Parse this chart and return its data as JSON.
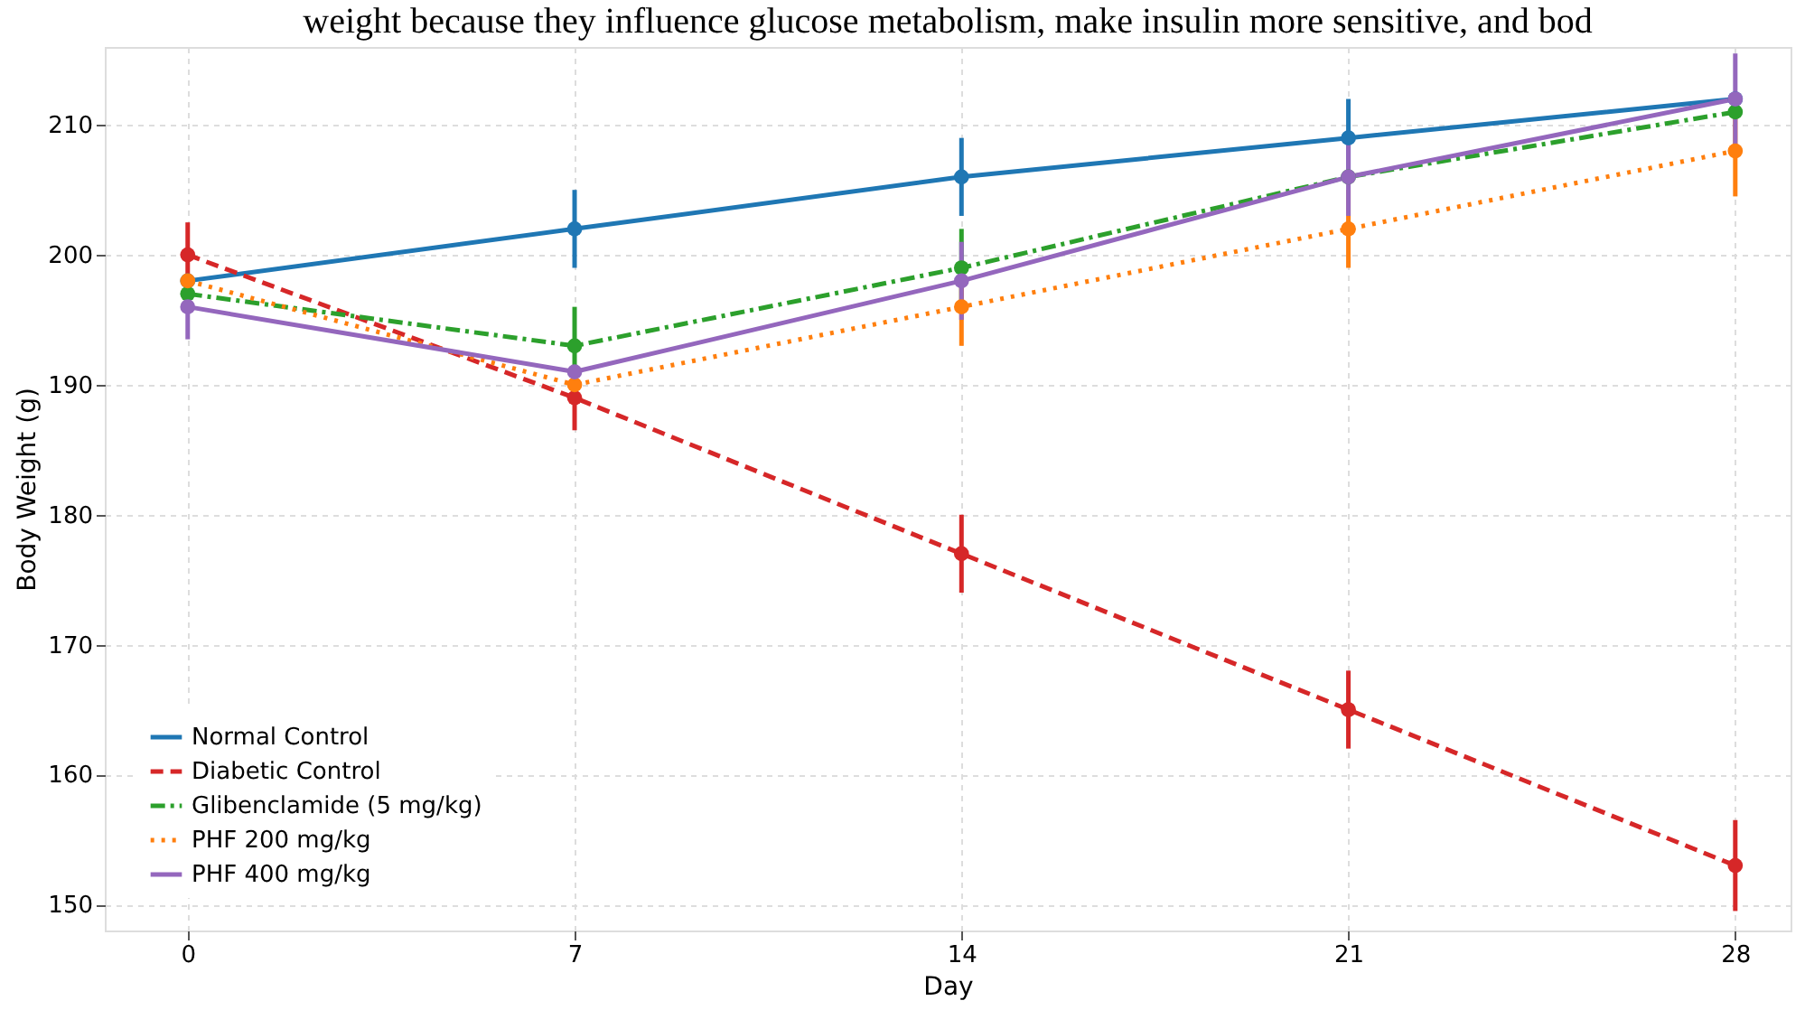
{
  "chart_data": {
    "type": "line",
    "xlabel": "Day",
    "ylabel": "Body Weight (g)",
    "annotations": [
      "weight because they influence glucose metabolism, make insulin more sensitive, and bod"
    ],
    "x": [
      0,
      7,
      14,
      21,
      28
    ],
    "xlim": [
      -1.5,
      29
    ],
    "xticks": [
      0,
      7,
      14,
      21,
      28
    ],
    "ylim": [
      148,
      216
    ],
    "yticks": [
      150,
      160,
      170,
      180,
      190,
      200,
      210
    ],
    "grid": true,
    "legend": "bottom left",
    "marker": "circle",
    "series": [
      {
        "name": "Normal Control",
        "color": "#1f77b4",
        "line_style": "solid",
        "values": [
          198,
          202,
          206,
          209,
          212
        ],
        "errors": [
          null,
          3,
          3,
          3,
          null
        ]
      },
      {
        "name": "Diabetic Control",
        "color": "#d62728",
        "line_style": "dashed",
        "values": [
          200,
          189,
          177,
          165,
          153
        ],
        "errors": [
          2.5,
          2.5,
          3,
          3,
          3.5
        ]
      },
      {
        "name": "Glibenclamide (5 mg/kg)",
        "color": "#2ca02c",
        "line_style": "dashdot",
        "values": [
          197,
          193,
          199,
          206,
          211
        ],
        "errors": [
          null,
          3,
          3,
          null,
          null
        ]
      },
      {
        "name": "PHF 200 mg/kg",
        "color": "#ff7f0e",
        "line_style": "dotted",
        "values": [
          198,
          190,
          196,
          202,
          208
        ],
        "errors": [
          null,
          null,
          3,
          3,
          3.5
        ]
      },
      {
        "name": "PHF 400 mg/kg",
        "color": "#9467bd",
        "line_style": "solid",
        "values": [
          196,
          191,
          198,
          206,
          212
        ],
        "errors": [
          2.5,
          null,
          3,
          3,
          3.5
        ]
      }
    ]
  }
}
